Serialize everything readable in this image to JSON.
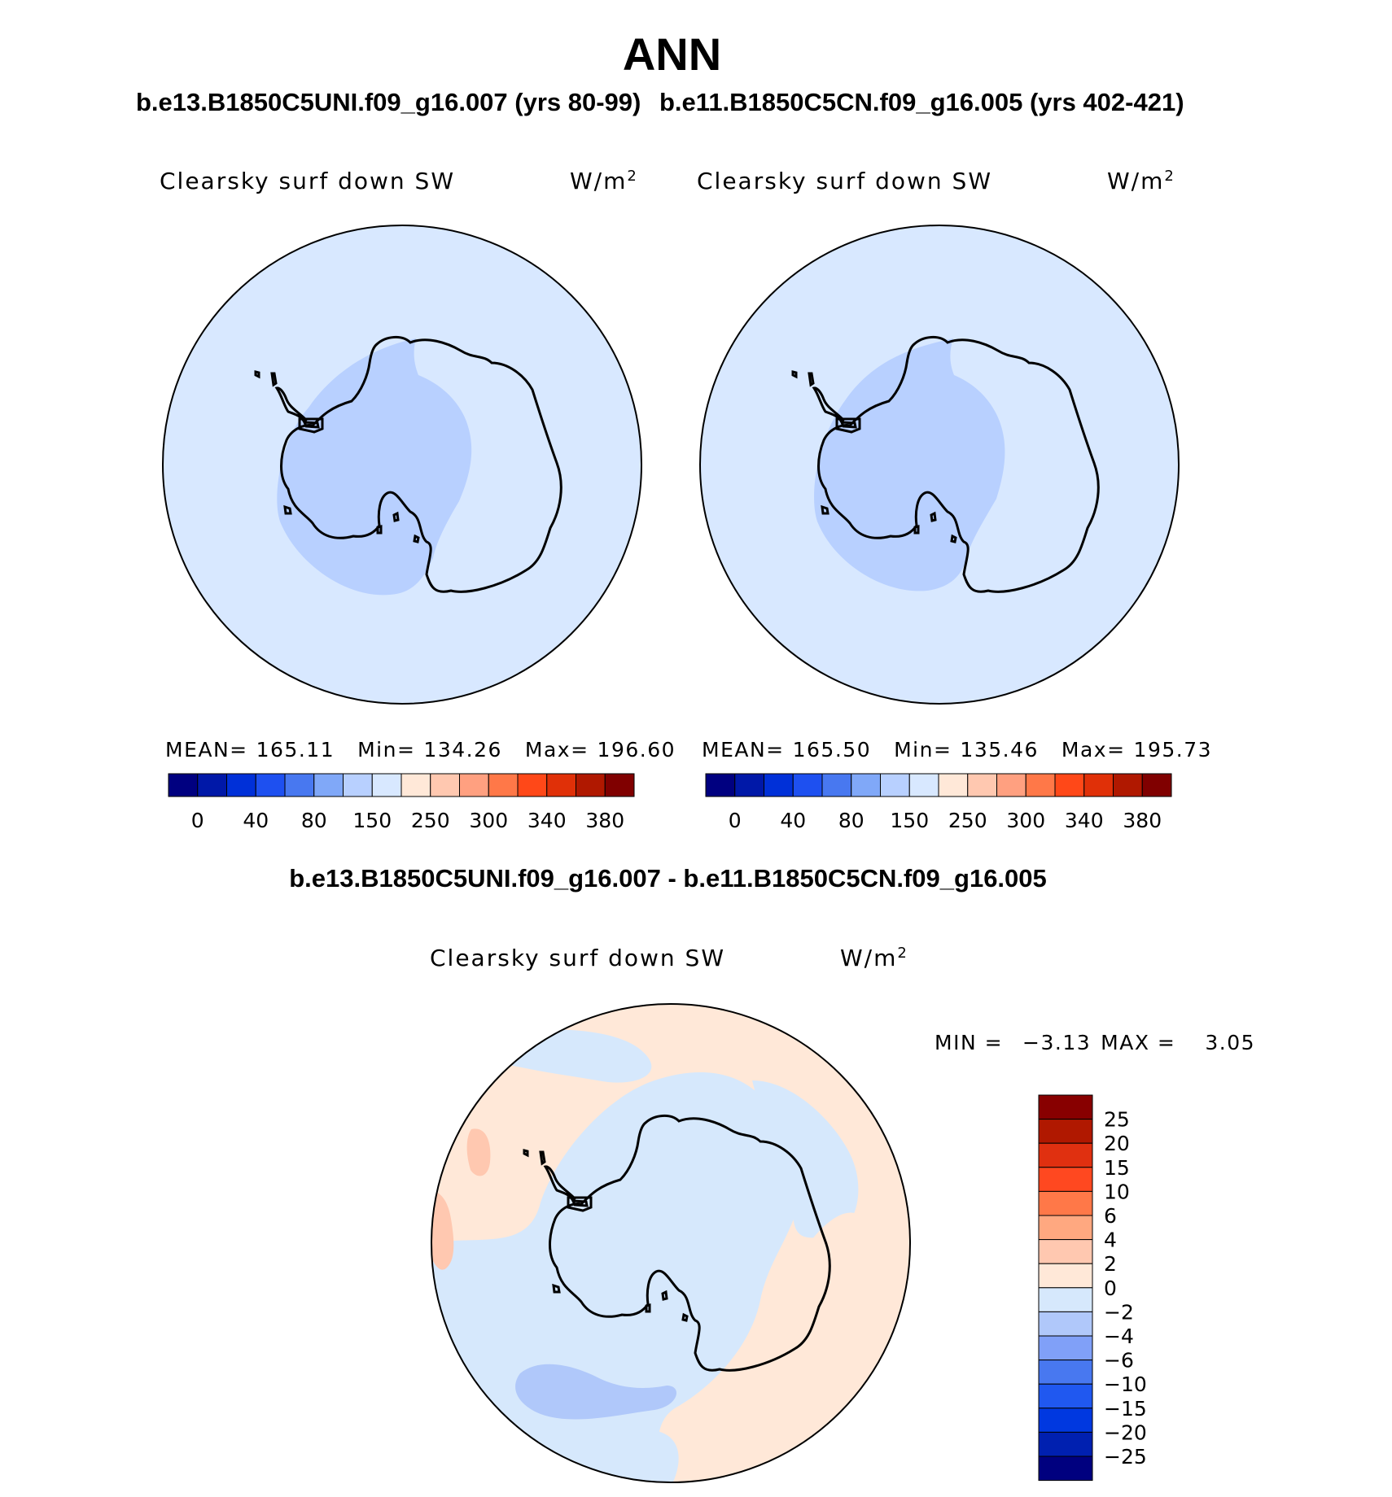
{
  "figure": {
    "title": "ANN",
    "case1": "b.e13.B1850C5UNI.f09_g16.007 (yrs 80-99)",
    "case2": "b.e11.B1850C5CN.f09_g16.005 (yrs 402-421)",
    "diff_title": "b.e13.B1850C5UNI.f09_g16.007 - b.e11.B1850C5CN.f09_g16.005"
  },
  "colors": {
    "abs": [
      "#000080",
      "#0018a8",
      "#0030d8",
      "#1e50f0",
      "#4878f0",
      "#80a8f8",
      "#b8d0ff",
      "#d8e8ff",
      "#ffe8d8",
      "#ffc8b0",
      "#ffa080",
      "#ff7848",
      "#ff4818",
      "#e03008",
      "#b01800",
      "#800000"
    ],
    "diff": [
      "#00007f",
      "#0020b0",
      "#0038e0",
      "#2058f0",
      "#4878f0",
      "#80a0f8",
      "#b0c8fa",
      "#d6e8fc",
      "#ffe8d8",
      "#ffc8b0",
      "#ffa880",
      "#ff7848",
      "#ff4820",
      "#e03010",
      "#b01800",
      "#880000"
    ]
  },
  "chart_data": [
    {
      "type": "heatmap",
      "projection": "south-polar-stereographic",
      "panel": "top-left",
      "field_label": "Clearsky surf down SW",
      "units": "W/m",
      "units_sup": "2",
      "stats": {
        "mean_label": "MEAN=",
        "mean": "165.11",
        "min_label": "Min=",
        "min": "134.26",
        "max_label": "Max=",
        "max": "196.60"
      },
      "contour_levels": [
        "0",
        "40",
        "80",
        "150",
        "250",
        "300",
        "340",
        "380"
      ],
      "regions": [
        {
          "name": "ocean",
          "level_bin": "150-250",
          "color_index": 7
        },
        {
          "name": "west-antarctica-ross",
          "level_bin": "80-150",
          "color_index": 6
        },
        {
          "name": "east-antarctica",
          "level_bin": "150-250",
          "color_index": 7
        }
      ]
    },
    {
      "type": "heatmap",
      "projection": "south-polar-stereographic",
      "panel": "top-right",
      "field_label": "Clearsky surf down SW",
      "units": "W/m",
      "units_sup": "2",
      "stats": {
        "mean_label": "MEAN=",
        "mean": "165.50",
        "min_label": "Min=",
        "min": "135.46",
        "max_label": "Max=",
        "max": "195.73"
      },
      "contour_levels": [
        "0",
        "40",
        "80",
        "150",
        "250",
        "300",
        "340",
        "380"
      ],
      "regions": [
        {
          "name": "ocean",
          "level_bin": "150-250",
          "color_index": 7
        },
        {
          "name": "west-antarctica-ross",
          "level_bin": "80-150",
          "color_index": 6
        },
        {
          "name": "east-antarctica",
          "level_bin": "150-250",
          "color_index": 7
        }
      ]
    },
    {
      "type": "heatmap",
      "projection": "south-polar-stereographic",
      "panel": "bottom-difference",
      "field_label": "Clearsky surf down SW",
      "units": "W/m",
      "units_sup": "2",
      "stats": {
        "min_label": "MIN =",
        "min": "−3.13",
        "max_label": "MAX =",
        "max": "3.05"
      },
      "contour_levels": [
        "25",
        "20",
        "15",
        "10",
        "6",
        "4",
        "2",
        "0",
        "−2",
        "−4",
        "−6",
        "−10",
        "−15",
        "−20",
        "−25"
      ],
      "regions": [
        {
          "name": "antarctica-and-coastal-ocean",
          "level_bin": "-2-0"
        },
        {
          "name": "south-pacific-weddell",
          "level_bin": "0-2"
        },
        {
          "name": "drake-passage-patches",
          "level_bin": "2-4"
        },
        {
          "name": "indian-ocean-sector",
          "level_bin": "-4--2"
        }
      ]
    }
  ]
}
